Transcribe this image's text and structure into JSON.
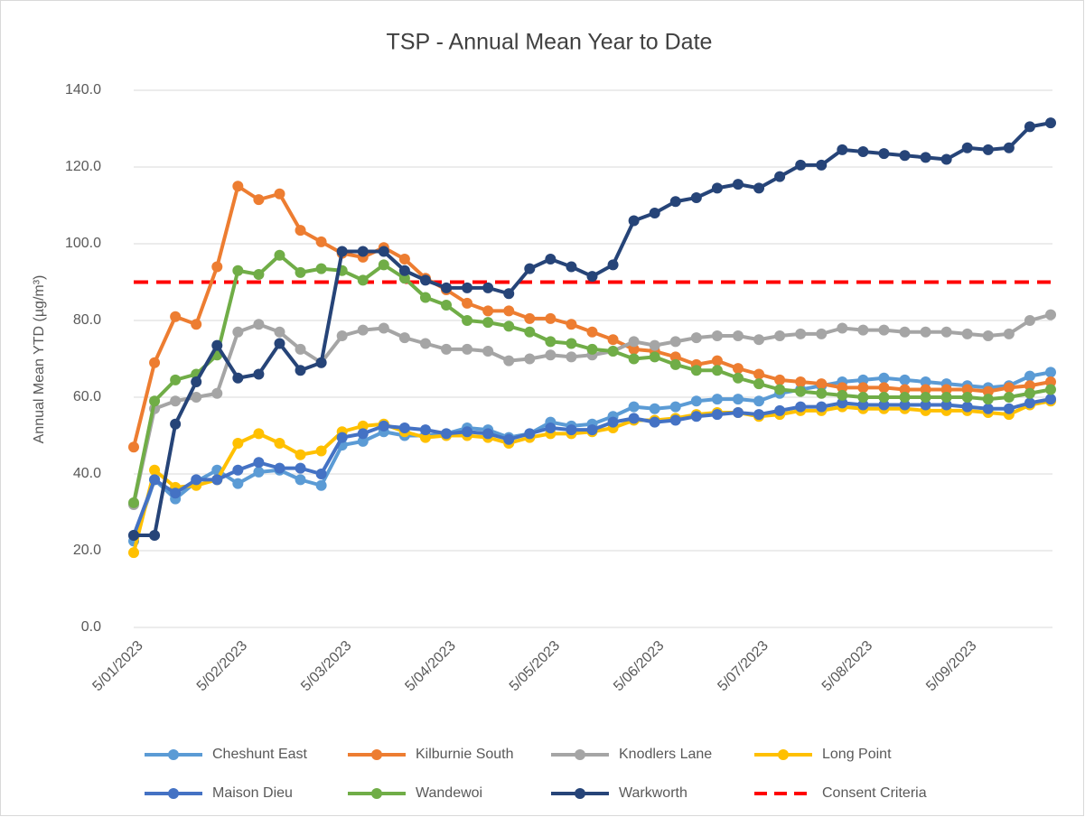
{
  "chart_data": {
    "type": "line",
    "title": "TSP - Annual Mean Year to Date",
    "y_label": "Annual Mean YTD (µg/m³)",
    "categories": [
      "5/01/2023",
      null,
      null,
      null,
      null,
      "5/02/2023",
      null,
      null,
      null,
      null,
      "5/03/2023",
      null,
      null,
      null,
      null,
      "5/04/2023",
      null,
      null,
      null,
      null,
      "5/05/2023",
      null,
      null,
      null,
      null,
      "5/06/2023",
      null,
      null,
      null,
      null,
      "5/07/2023",
      null,
      null,
      null,
      null,
      "5/08/2023",
      null,
      null,
      null,
      null,
      "5/09/2023",
      null,
      null,
      null,
      null
    ],
    "ylim": [
      0,
      140
    ],
    "yticks": [
      {
        "value": 0,
        "label": "0.0"
      },
      {
        "value": 20,
        "label": "20.0"
      },
      {
        "value": 40,
        "label": "40.0"
      },
      {
        "value": 60,
        "label": "60.0"
      },
      {
        "value": 80,
        "label": "80.0"
      },
      {
        "value": 100,
        "label": "100.0"
      },
      {
        "value": 120,
        "label": "120.0"
      },
      {
        "value": 140,
        "label": "140.0"
      }
    ],
    "grid": true,
    "legend": "bottom",
    "reference_line": {
      "name": "Consent Criteria",
      "color": "#ff0000",
      "value": 90,
      "dashed": true
    },
    "series": [
      {
        "name": "Cheshunt East",
        "color": "#5b9bd5",
        "values": [
          22.5,
          38.5,
          33.5,
          38,
          41,
          37.5,
          40.5,
          41,
          38.5,
          37,
          47.5,
          48.5,
          51,
          50,
          50,
          50.5,
          52,
          51.5,
          49.5,
          50.5,
          53.5,
          52.5,
          53,
          55,
          57.5,
          57,
          57.5,
          59,
          59.5,
          59.5,
          59,
          61,
          62,
          63,
          64,
          64.5,
          65,
          64.5,
          64,
          63.5,
          63,
          62.5,
          63,
          65.5,
          66.5
        ]
      },
      {
        "name": "Kilburnie South",
        "color": "#ed7d31",
        "values": [
          47,
          69,
          81,
          79,
          94,
          115,
          111.5,
          113,
          103.5,
          100.5,
          97.5,
          96.5,
          99,
          96,
          91,
          88,
          84.5,
          82.5,
          82.5,
          80.5,
          80.5,
          79,
          77,
          75,
          72.5,
          72,
          70.5,
          68.5,
          69.5,
          67.5,
          66,
          64.5,
          64,
          63.5,
          62.5,
          62.5,
          62.5,
          62,
          62,
          62,
          62,
          61.5,
          62.5,
          63,
          64
        ]
      },
      {
        "name": "Knodlers Lane",
        "color": "#a5a5a5",
        "values": [
          32,
          57,
          59,
          60,
          61,
          77,
          79,
          77,
          72.5,
          69,
          76,
          77.5,
          78,
          75.5,
          74,
          72.5,
          72.5,
          72,
          69.5,
          70,
          71,
          70.5,
          71,
          72,
          74.5,
          73.5,
          74.5,
          75.5,
          76,
          76,
          75,
          76,
          76.5,
          76.5,
          78,
          77.5,
          77.5,
          77,
          77,
          77,
          76.5,
          76,
          76.5,
          80,
          81.5
        ]
      },
      {
        "name": "Long Point",
        "color": "#ffc000",
        "values": [
          19.5,
          41,
          36.5,
          37,
          38.5,
          48,
          50.5,
          48,
          45,
          46,
          51,
          52.5,
          53,
          51,
          49.5,
          50,
          50,
          49.5,
          48,
          49.5,
          50.5,
          50.5,
          51,
          52,
          54,
          54,
          54.5,
          55.5,
          56,
          56,
          55,
          55.5,
          56.5,
          56.5,
          57.5,
          57,
          57,
          57,
          56.5,
          56.5,
          56.5,
          56,
          55.5,
          58,
          59
        ]
      },
      {
        "name": "Maison Dieu",
        "color": "#4472c4",
        "values": [
          24,
          38.5,
          35,
          38.5,
          38.5,
          41,
          43,
          41.5,
          41.5,
          40,
          49.5,
          50.5,
          52.5,
          52,
          51.5,
          50.5,
          51,
          50.5,
          49,
          50.5,
          52,
          51.5,
          51.5,
          53.5,
          54.5,
          53.5,
          54,
          55,
          55.5,
          56,
          55.5,
          56.5,
          57.5,
          57.5,
          58.5,
          58,
          58,
          58,
          58,
          58,
          57.5,
          57,
          57,
          58.5,
          59.5
        ]
      },
      {
        "name": "Wandewoi",
        "color": "#70ad47",
        "values": [
          32.5,
          59,
          64.5,
          66,
          71,
          93,
          92,
          97,
          92.5,
          93.5,
          93,
          90.5,
          94.5,
          91,
          86,
          84,
          80,
          79.5,
          78.5,
          77,
          74.5,
          74,
          72.5,
          72,
          70,
          70.5,
          68.5,
          67,
          67,
          65,
          63.5,
          62,
          61.5,
          61,
          60.5,
          60,
          60,
          60,
          60,
          60,
          60,
          59.5,
          60,
          61,
          62
        ]
      },
      {
        "name": "Warkworth",
        "color": "#264478",
        "values": [
          24,
          24,
          53,
          64,
          73.5,
          65,
          66,
          74,
          67,
          69,
          98,
          98,
          98,
          93,
          90.5,
          88.5,
          88.5,
          88.5,
          87,
          93.5,
          96,
          94,
          91.5,
          94.5,
          106,
          108,
          111,
          112,
          114.5,
          115.5,
          114.5,
          117.5,
          120.5,
          120.5,
          124.5,
          124,
          123.5,
          123,
          122.5,
          122,
          125,
          124.5,
          125,
          130.5,
          131.5
        ]
      }
    ]
  }
}
